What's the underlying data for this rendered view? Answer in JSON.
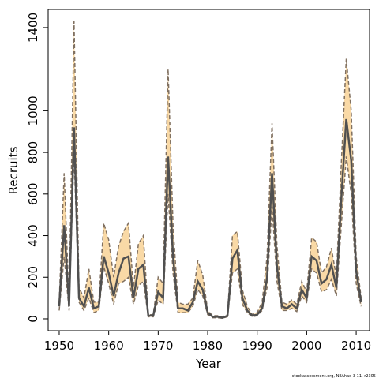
{
  "chart_data": {
    "type": "line",
    "x_label": "Year",
    "y_label": "Recruits",
    "note": "stockassessment.org, NEAhad 3 11, r2305",
    "x": [
      1950,
      1951,
      1952,
      1953,
      1954,
      1955,
      1956,
      1957,
      1958,
      1959,
      1960,
      1961,
      1962,
      1963,
      1964,
      1965,
      1966,
      1967,
      1968,
      1969,
      1970,
      1971,
      1972,
      1973,
      1974,
      1975,
      1976,
      1977,
      1978,
      1979,
      1980,
      1981,
      1982,
      1983,
      1984,
      1985,
      1986,
      1987,
      1988,
      1989,
      1990,
      1991,
      1992,
      1993,
      1994,
      1995,
      1996,
      1997,
      1998,
      1999,
      2000,
      2001,
      2002,
      2003,
      2004,
      2005,
      2006,
      2007,
      2008,
      2009,
      2010,
      2011
    ],
    "values": [
      60,
      450,
      60,
      920,
      100,
      60,
      150,
      50,
      60,
      300,
      220,
      110,
      220,
      290,
      300,
      100,
      240,
      260,
      15,
      15,
      130,
      100,
      780,
      300,
      50,
      50,
      40,
      80,
      180,
      140,
      30,
      10,
      10,
      5,
      15,
      290,
      330,
      100,
      40,
      15,
      20,
      50,
      200,
      700,
      250,
      60,
      50,
      70,
      50,
      140,
      100,
      300,
      280,
      170,
      190,
      260,
      150,
      580,
      960,
      760,
      230,
      80
    ],
    "lower": [
      40,
      300,
      40,
      800,
      80,
      40,
      100,
      30,
      40,
      250,
      170,
      70,
      170,
      180,
      200,
      70,
      160,
      180,
      10,
      10,
      90,
      70,
      600,
      220,
      30,
      30,
      30,
      60,
      140,
      110,
      20,
      5,
      5,
      3,
      10,
      220,
      240,
      70,
      30,
      10,
      15,
      40,
      150,
      540,
      180,
      40,
      40,
      50,
      35,
      110,
      80,
      240,
      220,
      130,
      140,
      190,
      110,
      450,
      780,
      600,
      170,
      60
    ],
    "upper": [
      80,
      700,
      80,
      1430,
      150,
      100,
      240,
      80,
      80,
      460,
      380,
      200,
      350,
      420,
      460,
      150,
      360,
      400,
      20,
      20,
      200,
      170,
      1200,
      450,
      80,
      70,
      70,
      100,
      280,
      210,
      40,
      15,
      15,
      10,
      20,
      400,
      420,
      140,
      60,
      20,
      30,
      80,
      300,
      940,
      350,
      80,
      70,
      90,
      70,
      180,
      130,
      390,
      370,
      220,
      250,
      340,
      200,
      750,
      1250,
      1000,
      300,
      100
    ],
    "line_color": "#505050",
    "band_color": "#f9d9a6",
    "bound_color": "#807060",
    "xlim": [
      1947.77,
      2012.7
    ],
    "ylim": [
      -57,
      1487
    ],
    "xticks": [
      1950,
      1960,
      1970,
      1980,
      1990,
      2000,
      2010
    ],
    "yticks": [
      0,
      200,
      400,
      600,
      800,
      1000,
      1400
    ]
  }
}
